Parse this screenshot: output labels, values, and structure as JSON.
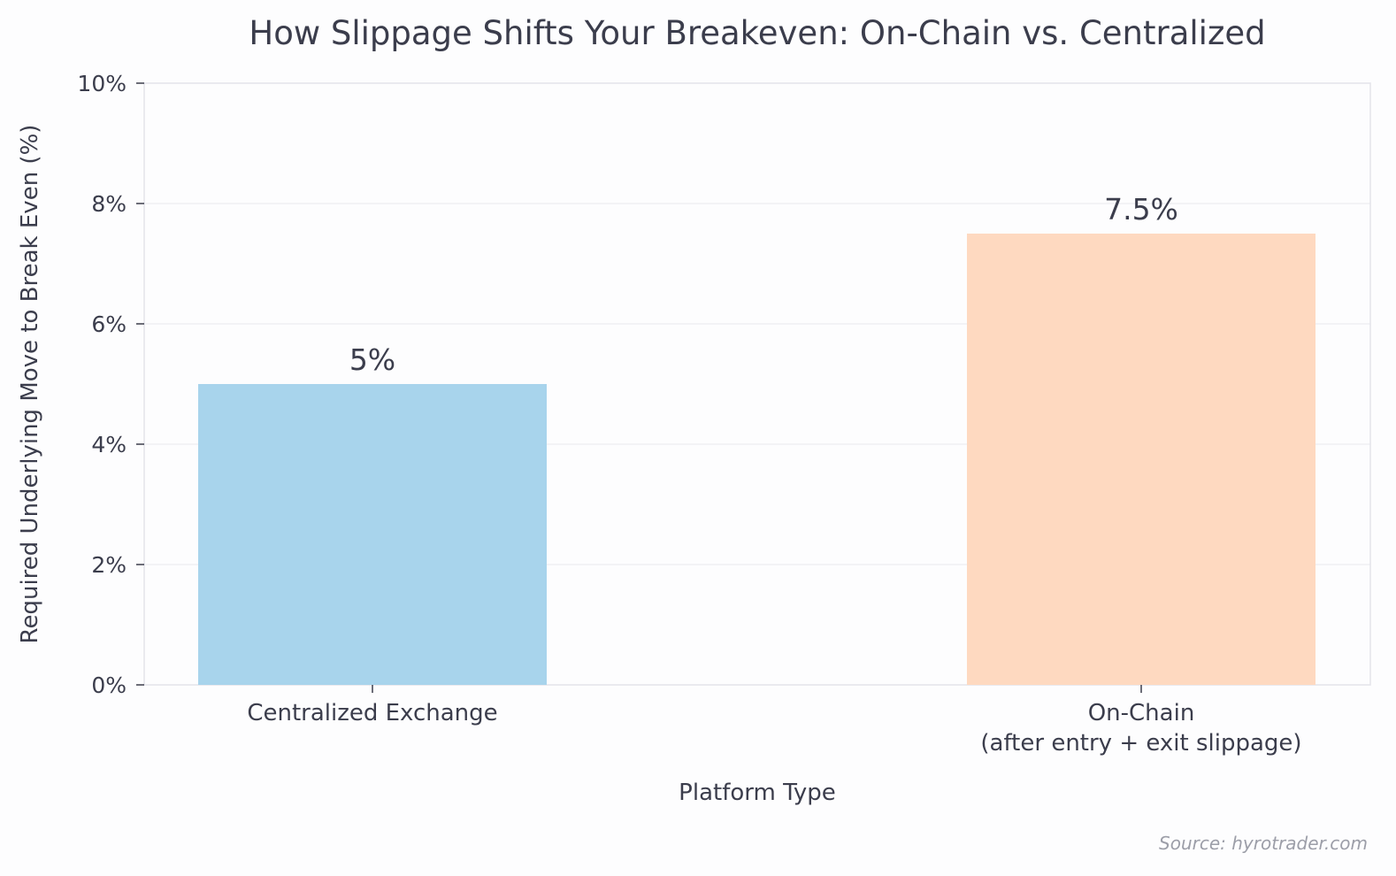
{
  "chart_data": {
    "type": "bar",
    "title": "How Slippage Shifts Your Breakeven: On-Chain vs. Centralized",
    "xlabel": "Platform Type",
    "ylabel": "Required Underlying Move to Break Even (%)",
    "categories": [
      [
        "Centralized Exchange"
      ],
      [
        "On-Chain",
        "(after entry + exit slippage)"
      ]
    ],
    "values": [
      5,
      7.5
    ],
    "data_labels": [
      "5%",
      "7.5%"
    ],
    "colors": [
      "#a8d4ec",
      "#fed9c0"
    ],
    "ylim": [
      0,
      10
    ],
    "yticks": [
      0,
      2,
      4,
      6,
      8,
      10
    ],
    "ytick_labels": [
      "0%",
      "2%",
      "4%",
      "6%",
      "8%",
      "10%"
    ],
    "grid": "y",
    "legend": "none"
  },
  "source": "Source: hyrotrader.com"
}
